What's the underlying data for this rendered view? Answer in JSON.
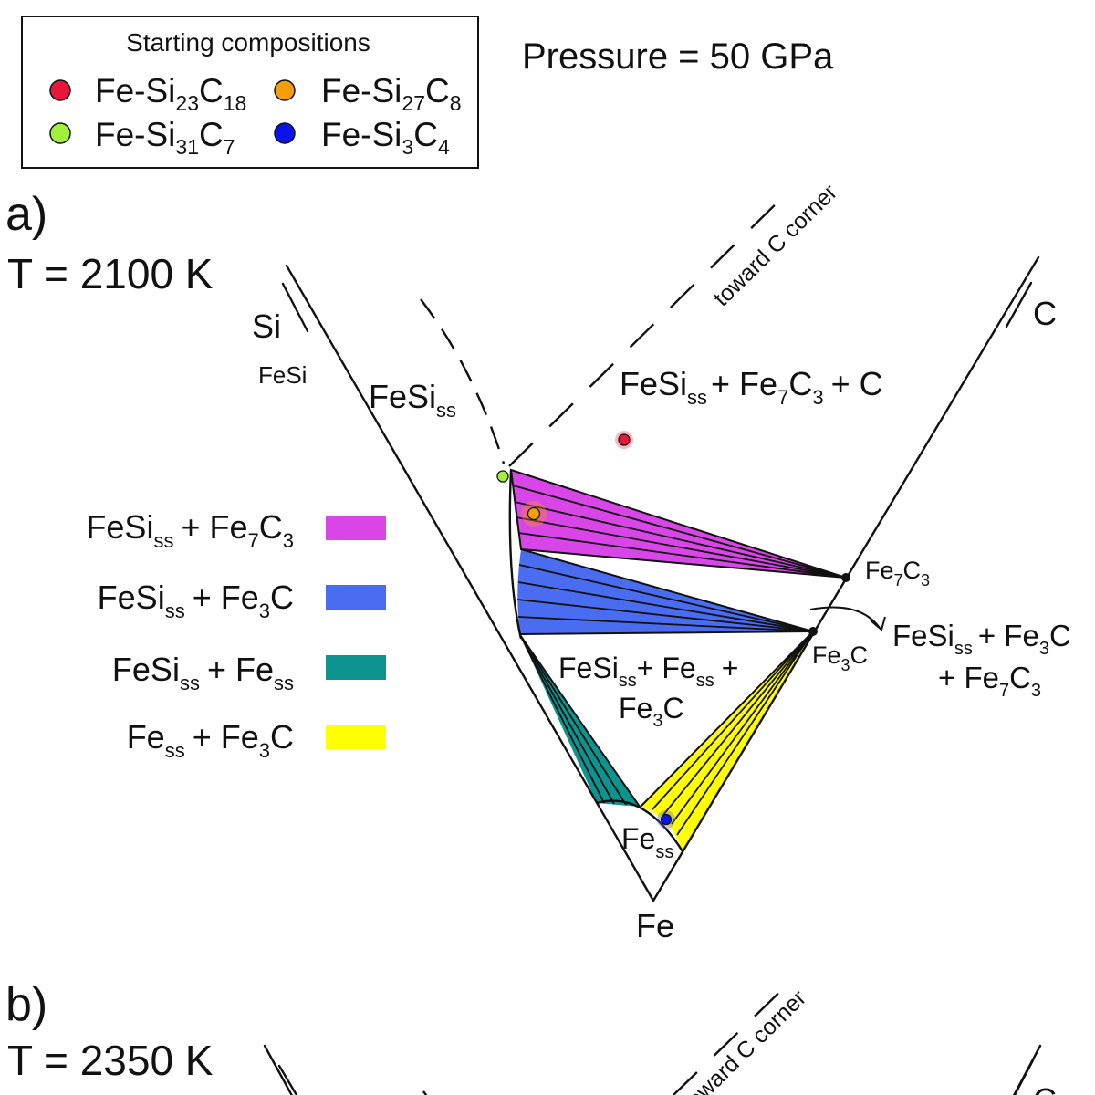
{
  "pressure_label": "Pressure = 50 GPa",
  "legend_box": {
    "title": "Starting compositions",
    "entries": [
      {
        "base": "Fe-Si",
        "s1": "23",
        "el2": "C",
        "s2": "18",
        "color": "#e8173a"
      },
      {
        "base": "Fe-Si",
        "s1": "27",
        "el2": "C",
        "s2": "8",
        "color": "#f59e0b"
      },
      {
        "base": "Fe-Si",
        "s1": "31",
        "el2": "C",
        "s2": "7",
        "color": "#a3f03c"
      },
      {
        "base": "Fe-Si",
        "s1": "3",
        "el2": "C",
        "s2": "4",
        "color": "#0a14e6"
      }
    ]
  },
  "panel_a": {
    "tag": "a)",
    "temperature": "T = 2100 K",
    "corner_si": "Si",
    "corner_c": "C",
    "corner_fe": "Fe",
    "fesi_marker": "FeSi",
    "toward_c": "toward C corner",
    "field_fesi_ss": {
      "main": "FeSi",
      "sub": "ss"
    },
    "field_upper": {
      "p1": "FeSi",
      "s1": "ss",
      "p2": "+ Fe",
      "s2": "7",
      "p3": "C",
      "s3": "3",
      "p4": "+ C"
    },
    "field_middle": {
      "p1": "FeSi",
      "s1": "ss",
      "p2": "+ Fe",
      "s2": "ss",
      "p3": "+",
      "p4": "Fe",
      "s4": "3",
      "p5": "C"
    },
    "field_fe_ss": {
      "main": "Fe",
      "sub": "ss"
    },
    "point_fe7c3": {
      "p1": "Fe",
      "s1": "7",
      "p2": "C",
      "s2": "3"
    },
    "point_fe3c": {
      "p1": "Fe",
      "s1": "3",
      "p2": "C"
    },
    "three_phase_annotation": {
      "p1": "FeSi",
      "s1": "ss",
      "p2": "+ Fe",
      "s2": "3",
      "p3": "C",
      "p4": "+ Fe",
      "s4": "7",
      "p5": "C",
      "s5": "3"
    },
    "region_legend": [
      {
        "p1": "FeSi",
        "s1": "ss",
        "p2": "+ Fe",
        "s2": "7",
        "p3": "C",
        "s3": "3",
        "color": "#d946e8"
      },
      {
        "p1": "FeSi",
        "s1": "ss",
        "p2": "+ Fe",
        "s2": "3",
        "p3": "C",
        "color": "#4a6cf0"
      },
      {
        "p1": "FeSi",
        "s1": "ss",
        "p2": "+ Fe",
        "s2": "ss",
        "color": "#0e948e"
      },
      {
        "p1": "Fe",
        "s1": "ss",
        "p2": "+ Fe",
        "s2": "3",
        "p3": "C",
        "color": "#ffff00"
      }
    ]
  },
  "panel_b": {
    "tag": "b)",
    "temperature": "T = 2350 K",
    "toward_c": "toward C corner",
    "corner_c": "C"
  }
}
